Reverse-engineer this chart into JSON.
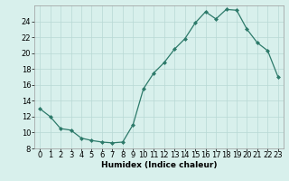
{
  "x": [
    0,
    1,
    2,
    3,
    4,
    5,
    6,
    7,
    8,
    9,
    10,
    11,
    12,
    13,
    14,
    15,
    16,
    17,
    18,
    19,
    20,
    21,
    22,
    23
  ],
  "y": [
    13,
    12,
    10.5,
    10.3,
    9.3,
    9.0,
    8.8,
    8.7,
    8.8,
    11.0,
    15.5,
    17.5,
    18.8,
    20.5,
    21.8,
    23.8,
    25.2,
    24.3,
    25.5,
    25.4,
    23.0,
    21.3,
    20.3,
    17.0
  ],
  "line_color": "#2d7a6a",
  "marker": "D",
  "marker_size": 2.0,
  "bg_color": "#d8f0ec",
  "grid_color": "#b8d8d4",
  "xlabel": "Humidex (Indice chaleur)",
  "ylim": [
    8,
    26
  ],
  "yticks": [
    8,
    10,
    12,
    14,
    16,
    18,
    20,
    22,
    24
  ],
  "xlim": [
    -0.5,
    23.5
  ],
  "tick_fontsize": 6,
  "xlabel_fontsize": 6.5
}
